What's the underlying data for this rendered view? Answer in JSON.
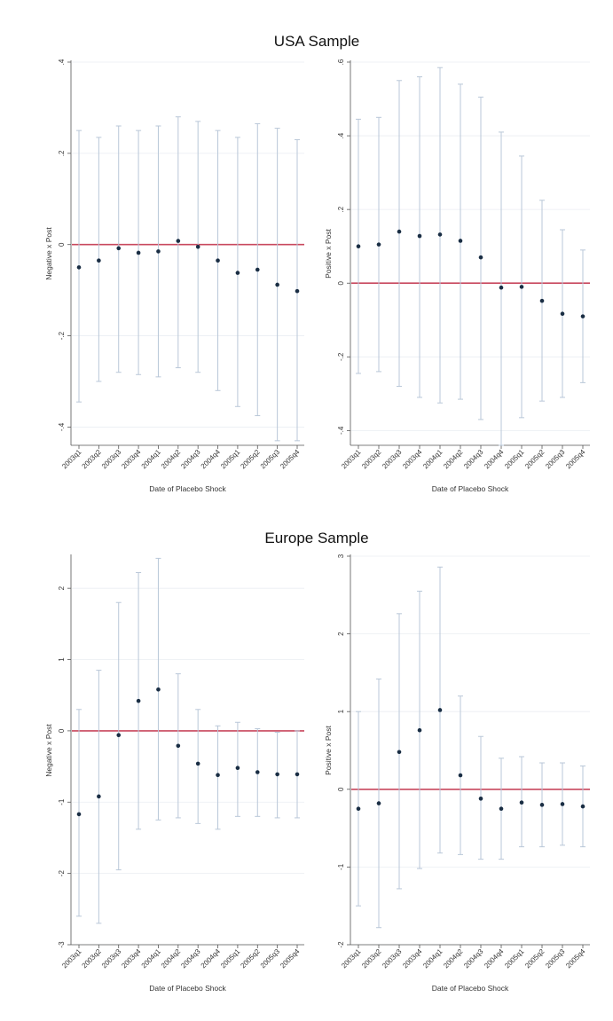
{
  "section_titles": [
    "USA Sample",
    "Europe Sample"
  ],
  "colors": {
    "point": "#1a2e44",
    "ci": "#b9c7d8",
    "zero_line": "#c8485e",
    "grid": "#eaeef2",
    "axis": "#555555"
  },
  "chart_data": [
    {
      "type": "scatter",
      "title": "",
      "xlabel": "Date of Placebo Shock",
      "ylabel": "Negative x Post",
      "categories": [
        "2003q1",
        "2003q2",
        "2003q3",
        "2003q4",
        "2004q1",
        "2004q2",
        "2004q3",
        "2004q4",
        "2005q1",
        "2005q2",
        "2005q3",
        "2005q4"
      ],
      "ylim": [
        -0.44,
        0.4
      ],
      "yticks": [
        -0.4,
        -0.2,
        0,
        0.2,
        0.4
      ],
      "ytick_labels": [
        "-.4",
        "-.2",
        "0",
        ".2",
        ".4"
      ],
      "series": [
        {
          "values": [
            -0.05,
            -0.035,
            -0.008,
            -0.018,
            -0.015,
            0.008,
            -0.005,
            -0.035,
            -0.062,
            -0.055,
            -0.088,
            -0.102
          ],
          "ci_low": [
            -0.345,
            -0.3,
            -0.28,
            -0.285,
            -0.29,
            -0.27,
            -0.28,
            -0.32,
            -0.355,
            -0.375,
            -0.43,
            -0.43
          ],
          "ci_high": [
            0.25,
            0.235,
            0.26,
            0.25,
            0.26,
            0.28,
            0.27,
            0.25,
            0.235,
            0.265,
            0.255,
            0.23
          ]
        }
      ],
      "reference_line": 0,
      "grid": true
    },
    {
      "type": "scatter",
      "title": "",
      "xlabel": "Date of Placebo Shock",
      "ylabel": "Positive x Post",
      "categories": [
        "2003q1",
        "2003q2",
        "2003q3",
        "2003q4",
        "2004q1",
        "2004q2",
        "2004q3",
        "2004q4",
        "2005q1",
        "2005q2",
        "2005q3",
        "2005q4"
      ],
      "ylim": [
        -0.44,
        0.6
      ],
      "yticks": [
        -0.4,
        -0.2,
        0,
        0.2,
        0.4,
        0.6
      ],
      "ytick_labels": [
        "-.4",
        "-.2",
        "0",
        ".2",
        ".4",
        ".6"
      ],
      "series": [
        {
          "values": [
            0.1,
            0.105,
            0.14,
            0.128,
            0.132,
            0.115,
            0.07,
            -0.012,
            -0.01,
            -0.048,
            -0.083,
            -0.09
          ],
          "ci_low": [
            -0.245,
            -0.24,
            -0.28,
            -0.31,
            -0.325,
            -0.315,
            -0.37,
            -0.44,
            -0.365,
            -0.32,
            -0.31,
            -0.27
          ],
          "ci_high": [
            0.445,
            0.45,
            0.55,
            0.56,
            0.585,
            0.54,
            0.505,
            0.41,
            0.345,
            0.225,
            0.145,
            0.09
          ]
        }
      ],
      "reference_line": 0,
      "grid": true
    },
    {
      "type": "scatter",
      "title": "",
      "xlabel": "Date of Placebo Shock",
      "ylabel": "Negative x Post",
      "categories": [
        "2003q1",
        "2003q2",
        "2003q3",
        "2003q4",
        "2004q1",
        "2004q2",
        "2004q3",
        "2004q4",
        "2005q1",
        "2005q2",
        "2005q3",
        "2005q4"
      ],
      "ylim": [
        -3,
        2.45
      ],
      "yticks": [
        -3,
        -2,
        -1,
        0,
        1,
        2
      ],
      "ytick_labels": [
        "-3",
        "-2",
        "-1",
        "0",
        "1",
        "2"
      ],
      "series": [
        {
          "values": [
            -1.17,
            -0.92,
            -0.06,
            0.42,
            0.58,
            -0.21,
            -0.46,
            -0.62,
            -0.52,
            -0.58,
            -0.61,
            -0.61
          ],
          "ci_low": [
            -2.6,
            -2.7,
            -1.95,
            -1.38,
            -1.25,
            -1.22,
            -1.3,
            -1.38,
            -1.2,
            -1.2,
            -1.22,
            -1.22
          ],
          "ci_high": [
            0.3,
            0.85,
            1.8,
            2.22,
            2.42,
            0.8,
            0.3,
            0.07,
            0.12,
            0.03,
            -0.02,
            0.0
          ]
        }
      ],
      "reference_line": 0,
      "grid": true
    },
    {
      "type": "scatter",
      "title": "",
      "xlabel": "Date of Placebo Shock",
      "ylabel": "Positive x Post",
      "categories": [
        "2003q1",
        "2003q2",
        "2003q3",
        "2003q4",
        "2004q1",
        "2004q2",
        "2004q3",
        "2004q4",
        "2005q1",
        "2005q2",
        "2005q3",
        "2005q4"
      ],
      "ylim": [
        -2,
        3
      ],
      "yticks": [
        -2,
        -1,
        0,
        1,
        2,
        3
      ],
      "ytick_labels": [
        "-2",
        "-1",
        "0",
        "1",
        "2",
        "3"
      ],
      "series": [
        {
          "values": [
            -0.25,
            -0.18,
            0.48,
            0.76,
            1.02,
            0.18,
            -0.12,
            -0.25,
            -0.17,
            -0.2,
            -0.19,
            -0.22
          ],
          "ci_low": [
            -1.5,
            -1.78,
            -1.28,
            -1.02,
            -0.82,
            -0.84,
            -0.9,
            -0.9,
            -0.74,
            -0.74,
            -0.72,
            -0.74
          ],
          "ci_high": [
            1.0,
            1.42,
            2.26,
            2.55,
            2.86,
            1.2,
            0.68,
            0.4,
            0.42,
            0.34,
            0.34,
            0.3
          ]
        }
      ],
      "reference_line": 0,
      "grid": true
    }
  ]
}
